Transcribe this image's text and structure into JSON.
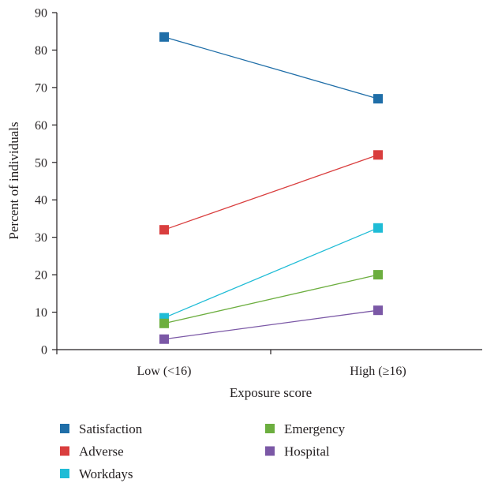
{
  "chart_data": {
    "type": "line",
    "title": "",
    "xlabel": "Exposure score",
    "ylabel": "Percent of individuals",
    "categories": [
      "Low (<16)",
      "High (≥16)"
    ],
    "ylim": [
      0,
      90
    ],
    "yticks": [
      0,
      10,
      20,
      30,
      40,
      50,
      60,
      70,
      80,
      90
    ],
    "grid": false,
    "legend_position": "bottom",
    "series": [
      {
        "name": "Satisfaction",
        "values": [
          83.5,
          67.0
        ],
        "color": "#1f6ea8"
      },
      {
        "name": "Adverse",
        "values": [
          32.0,
          52.0
        ],
        "color": "#d93e3e"
      },
      {
        "name": "Workdays",
        "values": [
          8.5,
          32.5
        ],
        "color": "#1fbcd6"
      },
      {
        "name": "Emergency",
        "values": [
          7.0,
          20.0
        ],
        "color": "#6cae3f"
      },
      {
        "name": "Hospital",
        "values": [
          2.8,
          10.5
        ],
        "color": "#7b58a6"
      }
    ],
    "legend_columns": [
      [
        "Satisfaction",
        "Adverse",
        "Workdays"
      ],
      [
        "Emergency",
        "Hospital"
      ]
    ]
  }
}
